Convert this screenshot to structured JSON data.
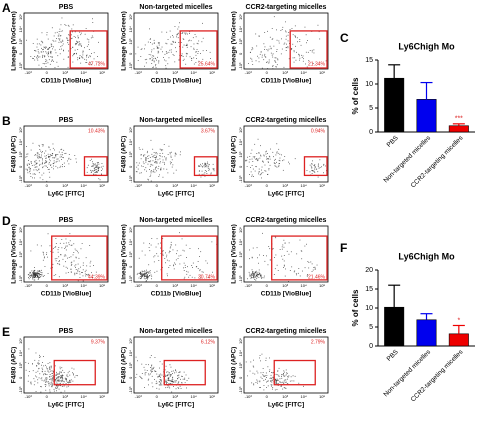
{
  "axis_ticks": [
    "-10³",
    "0",
    "10³",
    "10⁴",
    "10⁵"
  ],
  "panels": [
    {
      "label": "A",
      "x_label": "CD11b [VioBlue]",
      "y_label": "Lineage (VioGreen)",
      "plots": [
        {
          "title": "PBS",
          "gate": "47.73%"
        },
        {
          "title": "Non-targeted micelles",
          "gate": "25.64%"
        },
        {
          "title": "CCR2-targeting micelles",
          "gate": "21.34%"
        }
      ]
    },
    {
      "label": "B",
      "x_label": "Ly6C [FITC]",
      "y_label": "F4/80 (APC)",
      "plots": [
        {
          "title": "PBS",
          "gate": "10.43%"
        },
        {
          "title": "Non-targeted micelles",
          "gate": "3.67%"
        },
        {
          "title": "CCR2-targeting micelles",
          "gate": "0.94%"
        }
      ]
    },
    {
      "label": "D",
      "x_label": "CD11b [VioBlue]",
      "y_label": "Lineage (VioGreen)",
      "plots": [
        {
          "title": "PBS",
          "gate": "44.39%"
        },
        {
          "title": "Non-targeted micelles",
          "gate": "30.74%"
        },
        {
          "title": "CCR2-targeting micelles",
          "gate": "21.46%"
        }
      ]
    },
    {
      "label": "E",
      "x_label": "Ly6C [FITC]",
      "y_label": "F4/80 (APC)",
      "plots": [
        {
          "title": "PBS",
          "gate": "9.37%"
        },
        {
          "title": "Non-targeted micelles",
          "gate": "6.12%"
        },
        {
          "title": "CCR2-targeting micelles",
          "gate": "2.79%"
        }
      ]
    }
  ],
  "chart_data": [
    {
      "type": "bar",
      "panel_label": "C",
      "title": "Ly6Chigh Mo",
      "y_label": "% of cells",
      "categories": [
        "PBS",
        "Non-targeted micelles",
        "CCR2-targeting micelles"
      ],
      "values": [
        11.2,
        6.8,
        1.3
      ],
      "errors": [
        2.8,
        3.5,
        0.4
      ],
      "colors": [
        "#000000",
        "#0000ee",
        "#ee0000"
      ],
      "ylim": [
        0,
        15
      ],
      "yticks": [
        0,
        5,
        10,
        15
      ],
      "annotation": "***"
    },
    {
      "type": "bar",
      "panel_label": "F",
      "title": "Ly6Chigh Mo",
      "y_label": "% of cells",
      "categories": [
        "PBS",
        "Non-targeted micelles",
        "CCR2-targeting micelles"
      ],
      "values": [
        10.2,
        6.9,
        3.2
      ],
      "errors": [
        5.8,
        1.6,
        2.2
      ],
      "colors": [
        "#000000",
        "#0000ee",
        "#ee0000"
      ],
      "ylim": [
        0,
        20
      ],
      "yticks": [
        0,
        5,
        10,
        15,
        20
      ],
      "annotation": "*"
    }
  ]
}
